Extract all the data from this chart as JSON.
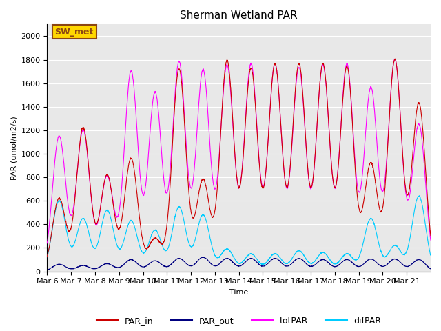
{
  "title": "Sherman Wetland PAR",
  "ylabel": "PAR (umol/m2/s)",
  "xlabel": "Time",
  "ylim": [
    0,
    2100
  ],
  "background_color": "#e8e8e8",
  "annotation_text": "SW_met",
  "annotation_bg": "#ffd700",
  "annotation_border": "#8b4513",
  "line_colors": {
    "PAR_in": "#cc0000",
    "PAR_out": "#000080",
    "totPAR": "#ff00ff",
    "difPAR": "#00ccff"
  },
  "legend_labels": [
    "PAR_in",
    "PAR_out",
    "totPAR",
    "difPAR"
  ],
  "xtick_labels": [
    "Mar 6",
    "Mar 7",
    "Mar 8",
    "Mar 9",
    "Mar 10",
    "Mar 11",
    "Mar 12",
    "Mar 13",
    "Mar 14",
    "Mar 15",
    "Mar 16",
    "Mar 17",
    "Mar 18",
    "Mar 19",
    "Mar 20",
    "Mar 21"
  ],
  "n_days": 16,
  "pts_per_day": 144,
  "day_peaks": {
    "PAR_in": [
      620,
      1220,
      820,
      960,
      280,
      1720,
      780,
      1790,
      1720,
      1760,
      1760,
      1760,
      1740,
      920,
      1800,
      1430
    ],
    "totPAR": [
      1150,
      1200,
      810,
      1700,
      1520,
      1780,
      1710,
      1750,
      1760,
      1760,
      1730,
      1750,
      1760,
      1560,
      1800,
      1250
    ],
    "difPAR": [
      600,
      450,
      520,
      430,
      350,
      550,
      480,
      190,
      150,
      150,
      175,
      160,
      150,
      450,
      220,
      640
    ],
    "PAR_out": [
      60,
      50,
      65,
      100,
      90,
      110,
      120,
      110,
      110,
      110,
      110,
      100,
      100,
      105,
      105,
      100
    ]
  },
  "yticks": [
    0,
    200,
    400,
    600,
    800,
    1000,
    1200,
    1400,
    1600,
    1800,
    2000
  ]
}
